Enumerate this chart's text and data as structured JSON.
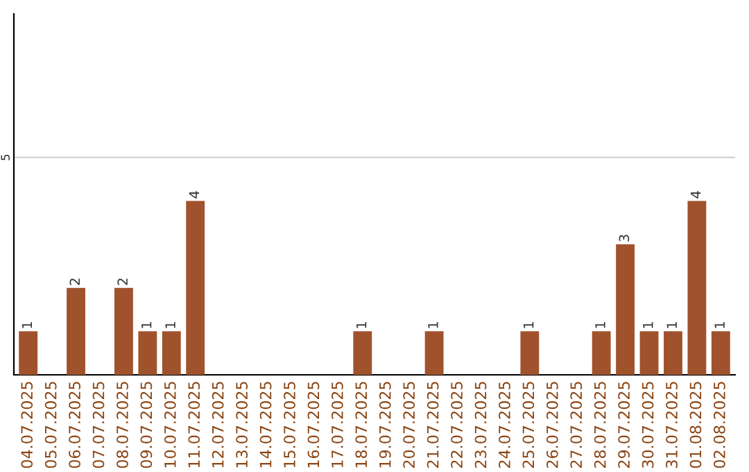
{
  "chart_data": {
    "type": "bar",
    "categories": [
      "04.07.2025",
      "05.07.2025",
      "06.07.2025",
      "07.07.2025",
      "08.07.2025",
      "09.07.2025",
      "10.07.2025",
      "11.07.2025",
      "12.07.2025",
      "13.07.2025",
      "14.07.2025",
      "15.07.2025",
      "16.07.2025",
      "17.07.2025",
      "18.07.2025",
      "19.07.2025",
      "20.07.2025",
      "21.07.2025",
      "22.07.2025",
      "23.07.2025",
      "24.07.2025",
      "25.07.2025",
      "26.07.2025",
      "27.07.2025",
      "28.07.2025",
      "29.07.2025",
      "30.07.2025",
      "31.07.2025",
      "01.08.2025",
      "02.08.2025"
    ],
    "values": [
      1,
      null,
      2,
      null,
      2,
      1,
      1,
      4,
      null,
      null,
      null,
      null,
      null,
      null,
      1,
      null,
      null,
      1,
      null,
      null,
      null,
      1,
      null,
      null,
      1,
      3,
      1,
      1,
      4,
      1
    ],
    "value_labels": [
      "1",
      null,
      "2",
      null,
      "2",
      "1",
      "1",
      "4",
      null,
      null,
      null,
      null,
      null,
      null,
      "1",
      null,
      null,
      "1",
      null,
      null,
      null,
      "1",
      null,
      null,
      "1",
      "3",
      "1",
      "1",
      "4",
      "1"
    ],
    "color": "#a0522d",
    "ylim": [
      0,
      8.3
    ],
    "yticks": [
      5
    ],
    "grid": "y"
  }
}
